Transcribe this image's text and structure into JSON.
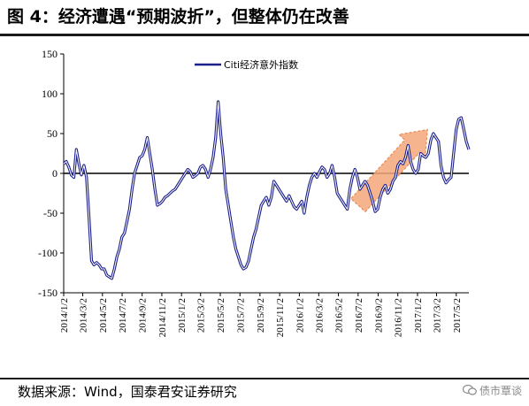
{
  "title": "图 4：经济遭遇“预期波折”，但整体仍在改善",
  "source": "数据来源：Wind，国泰君安证券研究",
  "watermark": "债市覃谈",
  "colors": {
    "line": "#1b1f8a",
    "trend_arrow": "#f4a77a",
    "trend_arrow_edge": "#e98b56",
    "zero_line": "#000000"
  },
  "chart_data": {
    "type": "line",
    "title": "",
    "legend": {
      "position": "top-center"
    },
    "ylim": [
      -150,
      150
    ],
    "y_ticks": [
      150,
      100,
      50,
      0,
      -50,
      -100,
      -150
    ],
    "x_tick_labels": [
      "2014/1/2",
      "2014/3/2",
      "2014/5/2",
      "2014/7/2",
      "2014/9/2",
      "2014/11/2",
      "2015/1/2",
      "2015/3/2",
      "2015/5/2",
      "2015/7/2",
      "2015/9/2",
      "2015/11/2",
      "2016/1/2",
      "2016/3/2",
      "2016/5/2",
      "2016/7/2",
      "2016/9/2",
      "2016/11/2",
      "2017/1/2",
      "2017/3/2",
      "2017/5/2"
    ],
    "series": [
      {
        "name": "Citi经济意外指数",
        "x_start": "2014/1/2",
        "x_end": "2017/6/10",
        "values": [
          12,
          15,
          8,
          -2,
          -5,
          30,
          12,
          -2,
          10,
          -5,
          -55,
          -110,
          -115,
          -112,
          -115,
          -120,
          -120,
          -128,
          -130,
          -132,
          -120,
          -105,
          -95,
          -80,
          -75,
          -60,
          -45,
          -20,
          0,
          10,
          20,
          22,
          30,
          45,
          25,
          5,
          -20,
          -40,
          -38,
          -35,
          -30,
          -28,
          -25,
          -22,
          -20,
          -15,
          -10,
          -5,
          0,
          5,
          2,
          -5,
          -3,
          0,
          8,
          10,
          5,
          -5,
          5,
          20,
          45,
          90,
          50,
          20,
          -20,
          -40,
          -60,
          -80,
          -95,
          -105,
          -115,
          -120,
          -118,
          -110,
          -95,
          -80,
          -70,
          -55,
          -40,
          -35,
          -30,
          -40,
          -30,
          -10,
          -15,
          -20,
          -25,
          -30,
          -35,
          -28,
          -35,
          -42,
          -45,
          -40,
          -35,
          -50,
          -30,
          -15,
          -5,
          0,
          -5,
          2,
          8,
          5,
          -5,
          0,
          10,
          -5,
          -25,
          -30,
          -35,
          -40,
          -45,
          -20,
          -5,
          5,
          -5,
          -20,
          -15,
          -10,
          -15,
          -25,
          -35,
          -48,
          -45,
          -30,
          -20,
          -15,
          -25,
          -20,
          -10,
          -5,
          10,
          15,
          12,
          20,
          35,
          15,
          5,
          0,
          5,
          25,
          22,
          20,
          25,
          42,
          50,
          45,
          40,
          10,
          -5,
          -12,
          -8,
          -5,
          25,
          55,
          68,
          70,
          55,
          40,
          30
        ]
      }
    ],
    "annotations": [
      {
        "type": "arrow",
        "from": [
          "2016/7/2",
          -40
        ],
        "to": [
          "2017/2/2",
          55
        ],
        "meaning": "upward trend"
      }
    ]
  }
}
